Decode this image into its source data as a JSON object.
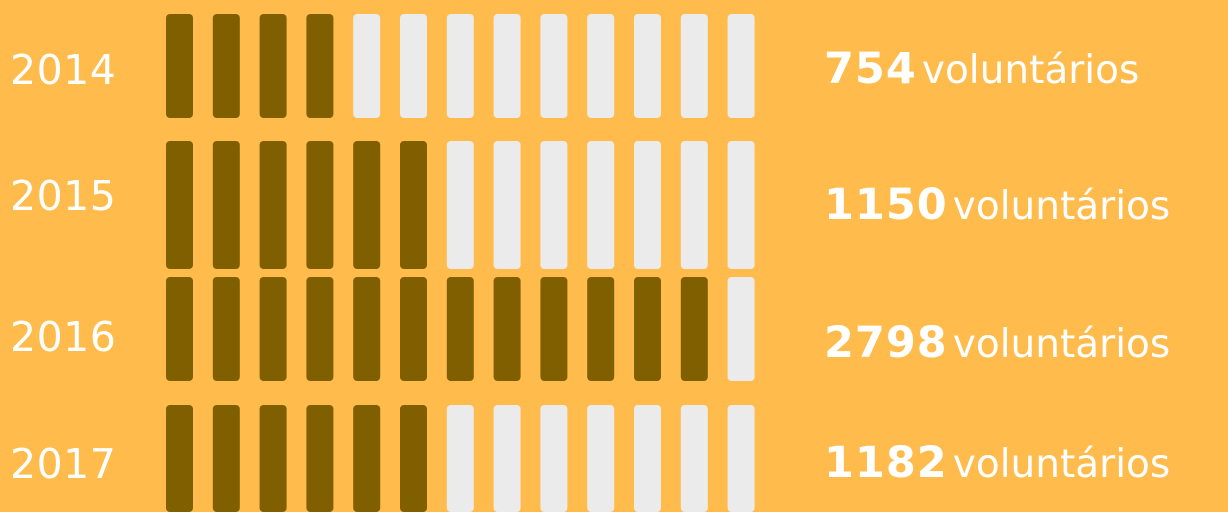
{
  "chart_data": {
    "type": "bar",
    "title": "",
    "xlabel": "",
    "ylabel": "",
    "unit": "voluntários",
    "segments_total": 13,
    "colors": {
      "background": "#FFBB4B",
      "filled": "#7F5F00",
      "empty": "#EBEBEB",
      "text": "#FFFFFF"
    },
    "rows": [
      {
        "year": "2014",
        "value": 754,
        "value_label": "754",
        "filled_segments": 4
      },
      {
        "year": "2015",
        "value": 1150,
        "value_label": "1150",
        "filled_segments": 6
      },
      {
        "year": "2016",
        "value": 2798,
        "value_label": "2798",
        "filled_segments": 12
      },
      {
        "year": "2017",
        "value": 1182,
        "value_label": "1182",
        "filled_segments": 6
      }
    ]
  }
}
